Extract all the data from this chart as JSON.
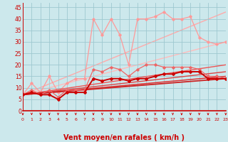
{
  "background_color": "#cce8ec",
  "grid_color": "#9ec8d0",
  "xlabel": "Vent moyen/en rafales ( km/h )",
  "xlabel_color": "#cc0000",
  "xlabel_fontsize": 7,
  "tick_color": "#cc0000",
  "x_ticks": [
    0,
    1,
    2,
    3,
    4,
    5,
    6,
    7,
    8,
    9,
    10,
    11,
    12,
    13,
    14,
    15,
    16,
    17,
    18,
    19,
    20,
    21,
    22,
    23
  ],
  "ylim": [
    0,
    47
  ],
  "xlim": [
    0,
    23
  ],
  "yticks": [
    0,
    5,
    10,
    15,
    20,
    25,
    30,
    35,
    40,
    45
  ],
  "series": [
    {
      "x": [
        0,
        1,
        2,
        3,
        4,
        5,
        6,
        7,
        8,
        9,
        10,
        11,
        12,
        13,
        14,
        15,
        16,
        17,
        18,
        19,
        20,
        21,
        22,
        23
      ],
      "y": [
        7,
        12,
        8,
        15,
        8,
        12,
        14,
        14,
        40,
        33,
        40,
        33,
        20,
        40,
        40,
        41,
        43,
        40,
        40,
        41,
        32,
        30,
        29,
        30
      ],
      "color": "#ff9999",
      "lw": 0.9,
      "marker": "D",
      "ms": 1.8,
      "zorder": 2
    },
    {
      "x": [
        0,
        23
      ],
      "y": [
        7,
        43
      ],
      "color": "#ffaaaa",
      "lw": 1.0,
      "marker": null,
      "ms": 0,
      "zorder": 1
    },
    {
      "x": [
        0,
        23
      ],
      "y": [
        7,
        30
      ],
      "color": "#ffbbbb",
      "lw": 1.0,
      "marker": null,
      "ms": 0,
      "zorder": 1
    },
    {
      "x": [
        0,
        1,
        2,
        3,
        4,
        5,
        6,
        7,
        8,
        9,
        10,
        11,
        12,
        13,
        14,
        15,
        16,
        17,
        18,
        19,
        20,
        21,
        22,
        23
      ],
      "y": [
        7,
        9,
        7,
        9,
        6,
        9,
        9,
        9,
        18,
        17,
        19,
        18,
        15,
        18,
        20,
        20,
        19,
        19,
        19,
        19,
        18,
        15,
        15,
        14
      ],
      "color": "#ee6666",
      "lw": 0.9,
      "marker": "D",
      "ms": 1.8,
      "zorder": 4
    },
    {
      "x": [
        0,
        23
      ],
      "y": [
        7,
        20
      ],
      "color": "#ee5555",
      "lw": 1.0,
      "marker": null,
      "ms": 0,
      "zorder": 3
    },
    {
      "x": [
        0,
        23
      ],
      "y": [
        7,
        17
      ],
      "color": "#dd4444",
      "lw": 1.0,
      "marker": null,
      "ms": 0,
      "zorder": 3
    },
    {
      "x": [
        0,
        23
      ],
      "y": [
        7,
        15
      ],
      "color": "#dd3333",
      "lw": 1.1,
      "marker": null,
      "ms": 0,
      "zorder": 3
    },
    {
      "x": [
        0,
        23
      ],
      "y": [
        7,
        14
      ],
      "color": "#cc2222",
      "lw": 1.3,
      "marker": null,
      "ms": 0,
      "zorder": 3
    },
    {
      "x": [
        0,
        1,
        2,
        3,
        4,
        5,
        6,
        7,
        8,
        9,
        10,
        11,
        12,
        13,
        14,
        15,
        16,
        17,
        18,
        19,
        20,
        21,
        22,
        23
      ],
      "y": [
        7,
        8,
        7,
        7,
        5,
        8,
        8,
        8,
        14,
        13,
        14,
        14,
        13,
        14,
        14,
        15,
        16,
        16,
        17,
        17,
        17,
        14,
        14,
        14
      ],
      "color": "#cc0000",
      "lw": 1.4,
      "marker": "D",
      "ms": 2.0,
      "zorder": 5
    }
  ]
}
